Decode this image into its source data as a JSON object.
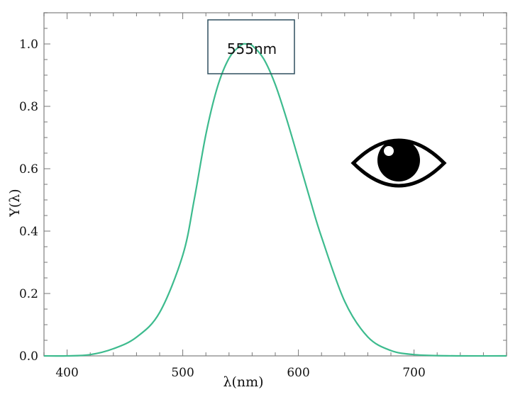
{
  "chart_data": {
    "type": "line",
    "title": "",
    "xlabel": "λ(nm)",
    "ylabel": "Y(λ)",
    "xlim": [
      380,
      780
    ],
    "ylim": [
      0,
      1.1
    ],
    "x_ticks": [
      400,
      500,
      600,
      700
    ],
    "y_ticks": [
      0.0,
      0.2,
      0.4,
      0.6,
      0.8,
      1.0
    ],
    "x_tick_labels": [
      "400",
      "500",
      "600",
      "700"
    ],
    "y_tick_labels": [
      "0.0",
      "0.2",
      "0.4",
      "0.6",
      "0.8",
      "1.0"
    ],
    "grid": false,
    "series": [
      {
        "color": "#3dbb8e",
        "x": [
          380,
          400,
          420,
          440,
          460,
          480,
          500,
          510,
          520,
          530,
          540,
          550,
          555,
          560,
          570,
          580,
          590,
          600,
          610,
          620,
          640,
          660,
          680,
          700,
          720,
          740,
          780
        ],
        "y": [
          0.0,
          0.0,
          0.004,
          0.023,
          0.06,
          0.139,
          0.323,
          0.503,
          0.71,
          0.862,
          0.954,
          0.995,
          1.0,
          0.995,
          0.952,
          0.87,
          0.757,
          0.631,
          0.503,
          0.381,
          0.175,
          0.061,
          0.017,
          0.004,
          0.001,
          0.0,
          0.0
        ]
      }
    ],
    "annotation": {
      "text": "555nm",
      "x": 555,
      "y": 1.0
    },
    "icon": "eye-icon"
  }
}
